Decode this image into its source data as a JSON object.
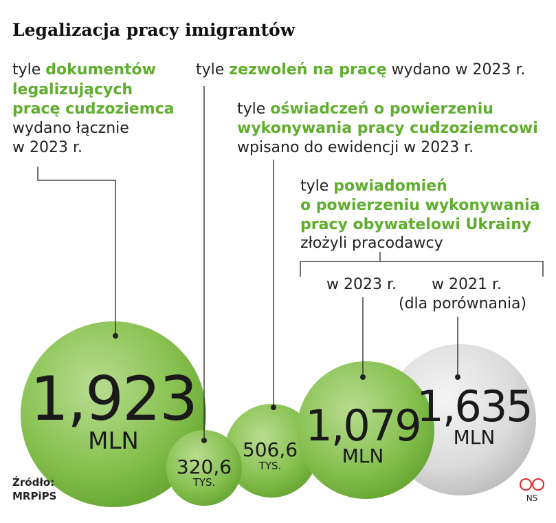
{
  "title": "Legalizacja pracy imigrantów",
  "items": [
    {
      "prefix": "tyle",
      "highlight": [
        "dokumentów",
        "legalizujących",
        "pracę cudzoziemca"
      ],
      "suffix": [
        "wydano łącznie",
        "w 2023 r."
      ],
      "value": "1,923",
      "unit": "MLN"
    },
    {
      "prefix": "tyle",
      "highlight": [
        "zezwoleń na pracę"
      ],
      "suffix": [
        "wydano w 2023 r."
      ],
      "value": "320,6",
      "unit": "TYS."
    },
    {
      "prefix": "tyle",
      "highlight": [
        "oświadczeń o powierzeniu",
        "wykonywania pracy cudzoziemcowi"
      ],
      "suffix": [
        "wpisano do ewidencji w 2023 r."
      ],
      "value": "506,6",
      "unit": "TYS."
    },
    {
      "prefix": "tyle",
      "highlight": [
        "powiadomień",
        "o powierzeniu wykonywania",
        "pracy obywatelowi Ukrainy"
      ],
      "suffix": [
        "złożyli pracodawcy"
      ],
      "sublabels": [
        "w 2023 r.",
        "w 2021 r.",
        "(dla porównania)"
      ],
      "values": [
        {
          "value": "1,079",
          "unit": "MLN"
        },
        {
          "value": "1,635",
          "unit": "MLN"
        }
      ]
    }
  ],
  "source": {
    "label": "Źródło:",
    "name": "MRPiPS"
  },
  "author": "NS"
}
